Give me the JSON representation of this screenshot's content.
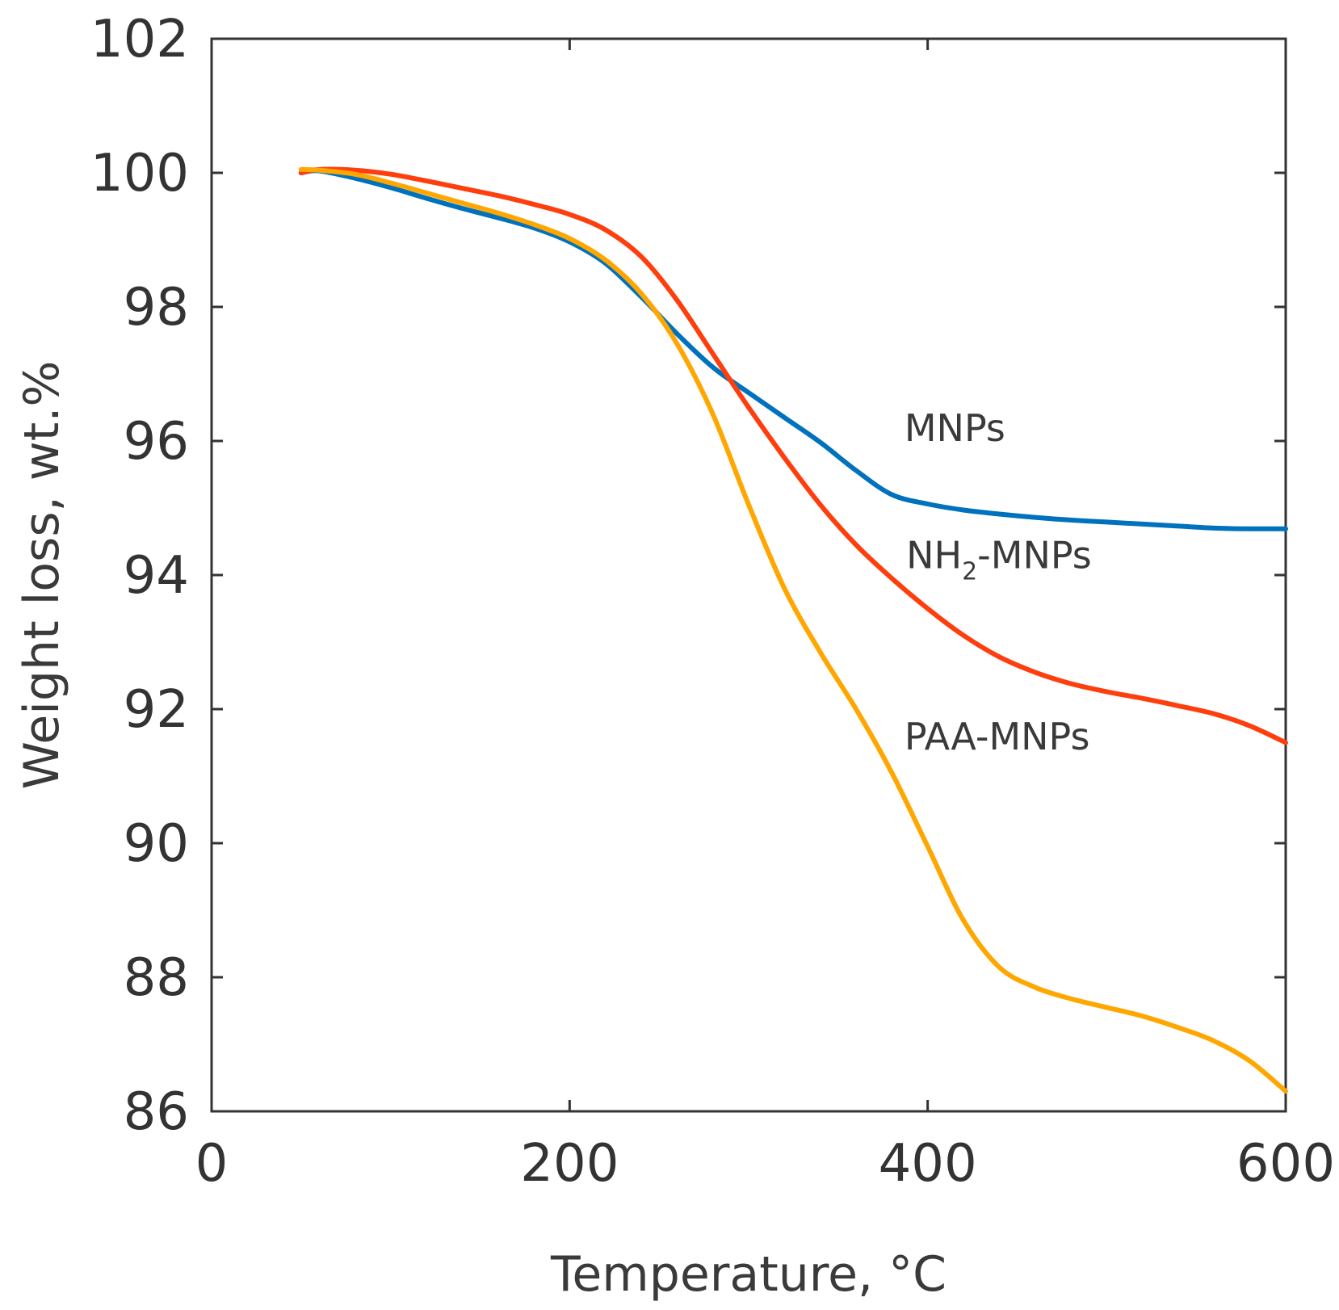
{
  "chart_data": {
    "type": "line",
    "title": "",
    "xlabel": "Temperature,  °C",
    "ylabel": "Weight loss, wt.%",
    "xlim": [
      0,
      600
    ],
    "ylim": [
      86,
      102
    ],
    "xticks": [
      0,
      200,
      400,
      600
    ],
    "yticks": [
      86,
      88,
      90,
      92,
      94,
      96,
      98,
      100,
      102
    ],
    "grid": false,
    "legend": "inline labels",
    "series": [
      {
        "name": "MNPs",
        "label_main": "MNPs",
        "label_sub": "",
        "label_rest": "",
        "label_at": [
          387,
          96
        ],
        "color": "#0072bd",
        "x": [
          50,
          60,
          80,
          100,
          120,
          140,
          160,
          180,
          200,
          220,
          240,
          260,
          280,
          300,
          320,
          340,
          360,
          380,
          400,
          420,
          440,
          460,
          480,
          500,
          520,
          540,
          560,
          580,
          600
        ],
        "y": [
          100.0,
          100.03,
          99.92,
          99.78,
          99.62,
          99.47,
          99.33,
          99.18,
          98.97,
          98.65,
          98.15,
          97.6,
          97.1,
          96.72,
          96.35,
          95.98,
          95.56,
          95.2,
          95.06,
          94.97,
          94.91,
          94.86,
          94.82,
          94.79,
          94.76,
          94.73,
          94.7,
          94.69,
          94.69
        ]
      },
      {
        "name": "NH2-MNPs",
        "label_main": "NH",
        "label_sub": "2",
        "label_rest": "-MNPs",
        "label_at": [
          388,
          94.1
        ],
        "color": "#ff3e0e",
        "x": [
          50,
          60,
          80,
          100,
          120,
          140,
          160,
          180,
          200,
          220,
          240,
          260,
          280,
          300,
          320,
          340,
          360,
          380,
          400,
          420,
          440,
          460,
          480,
          500,
          520,
          540,
          560,
          580,
          600
        ],
        "y": [
          100.0,
          100.05,
          100.04,
          99.98,
          99.88,
          99.77,
          99.66,
          99.53,
          99.38,
          99.15,
          98.75,
          98.1,
          97.3,
          96.5,
          95.75,
          95.05,
          94.45,
          93.95,
          93.5,
          93.1,
          92.78,
          92.55,
          92.38,
          92.26,
          92.16,
          92.05,
          91.93,
          91.75,
          91.5
        ]
      },
      {
        "name": "PAA-MNPs",
        "label_main": "PAA-MNPs",
        "label_sub": "",
        "label_rest": "",
        "label_at": [
          387,
          91.4
        ],
        "color": "#ffa600",
        "x": [
          50,
          60,
          80,
          100,
          120,
          140,
          160,
          180,
          200,
          220,
          240,
          260,
          280,
          300,
          320,
          340,
          360,
          380,
          400,
          420,
          440,
          460,
          480,
          500,
          520,
          540,
          560,
          580,
          600
        ],
        "y": [
          100.05,
          100.04,
          99.98,
          99.85,
          99.7,
          99.55,
          99.4,
          99.23,
          99.02,
          98.7,
          98.2,
          97.45,
          96.4,
          95.05,
          93.8,
          92.85,
          92.0,
          91.05,
          89.95,
          88.85,
          88.15,
          87.85,
          87.68,
          87.55,
          87.42,
          87.25,
          87.05,
          86.75,
          86.3
        ]
      }
    ]
  }
}
